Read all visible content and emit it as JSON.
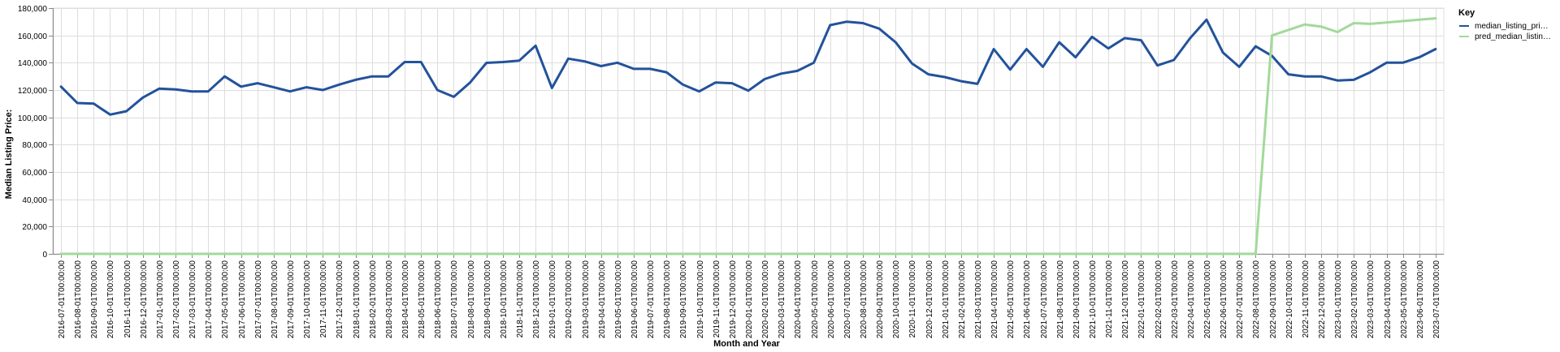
{
  "chart_data": {
    "type": "line",
    "xlabel": "Month and Year",
    "ylabel": "Median Listing Price:",
    "ylim": [
      0,
      180000
    ],
    "y_ticks": [
      0,
      20000,
      40000,
      60000,
      80000,
      100000,
      120000,
      140000,
      160000,
      180000
    ],
    "grid": true,
    "legend": {
      "title": "Key",
      "placement": "top-right",
      "entries": [
        {
          "label": "median_listing_pri…",
          "color": "#23529b"
        },
        {
          "label": "pred_median_listin…",
          "color": "#a3d99b"
        }
      ]
    },
    "x": [
      "2016-07-01T00:00:00",
      "2016-08-01T00:00:00",
      "2016-09-01T00:00:00",
      "2016-10-01T00:00:00",
      "2016-11-01T00:00:00",
      "2016-12-01T00:00:00",
      "2017-01-01T00:00:00",
      "2017-02-01T00:00:00",
      "2017-03-01T00:00:00",
      "2017-04-01T00:00:00",
      "2017-05-01T00:00:00",
      "2017-06-01T00:00:00",
      "2017-07-01T00:00:00",
      "2017-08-01T00:00:00",
      "2017-09-01T00:00:00",
      "2017-10-01T00:00:00",
      "2017-11-01T00:00:00",
      "2017-12-01T00:00:00",
      "2018-01-01T00:00:00",
      "2018-02-01T00:00:00",
      "2018-03-01T00:00:00",
      "2018-04-01T00:00:00",
      "2018-05-01T00:00:00",
      "2018-06-01T00:00:00",
      "2018-07-01T00:00:00",
      "2018-08-01T00:00:00",
      "2018-09-01T00:00:00",
      "2018-10-01T00:00:00",
      "2018-11-01T00:00:00",
      "2018-12-01T00:00:00",
      "2019-01-01T00:00:00",
      "2019-02-01T00:00:00",
      "2019-03-01T00:00:00",
      "2019-04-01T00:00:00",
      "2019-05-01T00:00:00",
      "2019-06-01T00:00:00",
      "2019-07-01T00:00:00",
      "2019-08-01T00:00:00",
      "2019-09-01T00:00:00",
      "2019-10-01T00:00:00",
      "2019-11-01T00:00:00",
      "2019-12-01T00:00:00",
      "2020-01-01T00:00:00",
      "2020-02-01T00:00:00",
      "2020-03-01T00:00:00",
      "2020-04-01T00:00:00",
      "2020-05-01T00:00:00",
      "2020-06-01T00:00:00",
      "2020-07-01T00:00:00",
      "2020-08-01T00:00:00",
      "2020-09-01T00:00:00",
      "2020-10-01T00:00:00",
      "2020-11-01T00:00:00",
      "2020-12-01T00:00:00",
      "2021-01-01T00:00:00",
      "2021-02-01T00:00:00",
      "2021-03-01T00:00:00",
      "2021-04-01T00:00:00",
      "2021-05-01T00:00:00",
      "2021-06-01T00:00:00",
      "2021-07-01T00:00:00",
      "2021-08-01T00:00:00",
      "2021-09-01T00:00:00",
      "2021-10-01T00:00:00",
      "2021-11-01T00:00:00",
      "2021-12-01T00:00:00",
      "2022-01-01T00:00:00",
      "2022-02-01T00:00:00",
      "2022-03-01T00:00:00",
      "2022-04-01T00:00:00",
      "2022-05-01T00:00:00",
      "2022-06-01T00:00:00",
      "2022-07-01T00:00:00",
      "2022-08-01T00:00:00",
      "2022-09-01T00:00:00",
      "2022-10-01T00:00:00",
      "2022-11-01T00:00:00",
      "2022-12-01T00:00:00",
      "2023-01-01T00:00:00",
      "2023-02-01T00:00:00",
      "2023-03-01T00:00:00",
      "2023-04-01T00:00:00",
      "2023-05-01T00:00:00",
      "2023-06-01T00:00:00",
      "2023-07-01T00:00:00"
    ],
    "series": [
      {
        "name": "median_listing_pri…",
        "color": "#23529b",
        "values": [
          122500,
          110500,
          110000,
          102000,
          104500,
          114500,
          121000,
          120500,
          119000,
          119000,
          130000,
          122500,
          125000,
          122000,
          119000,
          122000,
          120000,
          124000,
          127500,
          130000,
          130000,
          140500,
          140500,
          120000,
          115000,
          125500,
          139900,
          140500,
          141500,
          152500,
          121500,
          143000,
          141000,
          137500,
          140000,
          135500,
          135500,
          133000,
          124000,
          119000,
          125500,
          125000,
          119500,
          128000,
          132000,
          134000,
          140000,
          167500,
          170000,
          169000,
          165000,
          155000,
          139500,
          131500,
          129500,
          126500,
          124500,
          150000,
          135000,
          150000,
          137000,
          155000,
          144000,
          159000,
          150500,
          158000,
          156500,
          138000,
          142000,
          158000,
          171500,
          147500,
          137000,
          152000,
          145000,
          131500,
          130000,
          130000,
          127000,
          127500,
          133000,
          140000,
          140000,
          144000,
          150000
        ]
      },
      {
        "name": "pred_median_listin…",
        "color": "#a3d99b",
        "values": [
          0,
          0,
          0,
          0,
          0,
          0,
          0,
          0,
          0,
          0,
          0,
          0,
          0,
          0,
          0,
          0,
          0,
          0,
          0,
          0,
          0,
          0,
          0,
          0,
          0,
          0,
          0,
          0,
          0,
          0,
          0,
          0,
          0,
          0,
          0,
          0,
          0,
          0,
          0,
          0,
          0,
          0,
          0,
          0,
          0,
          0,
          0,
          0,
          0,
          0,
          0,
          0,
          0,
          0,
          0,
          0,
          0,
          0,
          0,
          0,
          0,
          0,
          0,
          0,
          0,
          0,
          0,
          0,
          0,
          0,
          0,
          0,
          0,
          0,
          160000,
          164000,
          168000,
          166500,
          162500,
          169000,
          168500,
          169500,
          170500,
          171500,
          172500
        ]
      }
    ]
  }
}
